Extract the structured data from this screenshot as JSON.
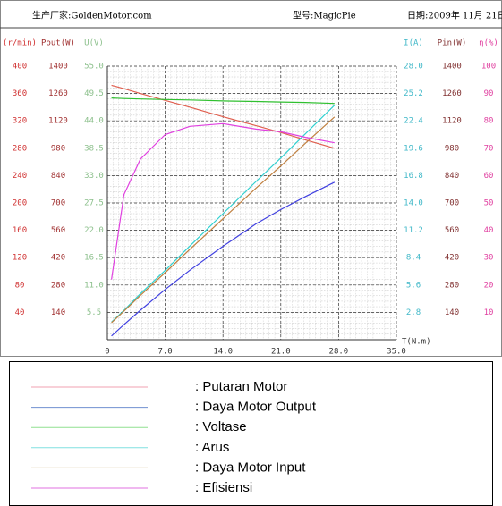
{
  "header": {
    "maker": "生产厂家:GoldenMotor.com",
    "model": "型号:MagicPie",
    "date": "日期:2009年 11月 21日"
  },
  "chart_data": {
    "type": "line",
    "x_label": "T(N.m)",
    "xlim": [
      0,
      35
    ],
    "xticks": [
      0,
      {
        "value": 7,
        "label": "7.0"
      },
      {
        "value": 14,
        "label": "14.0"
      },
      {
        "value": 21,
        "label": "21.0"
      },
      {
        "value": 28,
        "label": "28.0"
      },
      {
        "value": 35,
        "label": "35.0"
      }
    ],
    "grid": true,
    "axes": [
      {
        "id": "rpm",
        "label": "(r/min)",
        "color": "#d03030",
        "ylim": [
          0,
          400
        ],
        "yticks": [
          40,
          80,
          120,
          160,
          200,
          240,
          280,
          320,
          360,
          400
        ]
      },
      {
        "id": "pout",
        "label": "Pout(W)",
        "color": "#a03030",
        "ylim": [
          0,
          1400
        ],
        "yticks": [
          140,
          280,
          420,
          560,
          700,
          840,
          980,
          1120,
          1260,
          1400
        ]
      },
      {
        "id": "u",
        "label": "U(V)",
        "color": "#8cc08c",
        "ylim": [
          0,
          55
        ],
        "yticks": [
          5.5,
          {
            "value": 11,
            "label": "11.0"
          },
          16.5,
          {
            "value": 22,
            "label": "22.0"
          },
          27.5,
          {
            "value": 33,
            "label": "33.0"
          },
          38.5,
          {
            "value": 44,
            "label": "44.0"
          },
          49.5,
          {
            "value": 55,
            "label": "55.0"
          }
        ]
      },
      {
        "id": "i",
        "label": "I(A)",
        "color": "#40b8c8",
        "ylim": [
          0,
          28
        ],
        "yticks": [
          2.8,
          5.6,
          8.4,
          11.2,
          {
            "value": 14,
            "label": "14.0"
          },
          16.8,
          19.6,
          22.4,
          25.2,
          {
            "value": 28,
            "label": "28.0"
          }
        ]
      },
      {
        "id": "pin",
        "label": "Pin(W)",
        "color": "#803030",
        "ylim": [
          0,
          1400
        ],
        "yticks": [
          140,
          280,
          420,
          560,
          700,
          840,
          980,
          1120,
          1260,
          1400
        ]
      },
      {
        "id": "eta",
        "label": "η(%)",
        "color": "#e040a0",
        "ylim": [
          0,
          100
        ],
        "yticks": [
          10,
          20,
          30,
          40,
          50,
          60,
          70,
          80,
          90,
          100
        ]
      }
    ],
    "x": [
      0.5,
      2,
      4,
      7,
      10,
      14,
      18,
      21,
      24,
      27.5
    ],
    "series": [
      {
        "name": ": Putaran Motor",
        "axis": "rpm",
        "color": "#e06050",
        "legend_color": "#f0a0b0",
        "values": [
          372,
          367,
          360,
          350,
          340,
          326,
          313,
          303,
          292,
          280
        ]
      },
      {
        "name": ": Daya Motor Output",
        "axis": "pout",
        "color": "#4040e0",
        "legend_color": "#7090d0",
        "values": [
          19,
          77,
          151,
          257,
          356,
          478,
          593,
          666,
          733,
          806
        ]
      },
      {
        "name": ": Voltase",
        "axis": "u",
        "color": "#30c030",
        "legend_color": "#90e090",
        "values": [
          48.6,
          48.5,
          48.4,
          48.3,
          48.2,
          48.0,
          47.9,
          47.8,
          47.7,
          47.5
        ]
      },
      {
        "name": ": Arus",
        "axis": "i",
        "color": "#30d0d0",
        "legend_color": "#80e0e0",
        "values": [
          1.8,
          3.0,
          4.7,
          7.1,
          9.6,
          12.9,
          16.2,
          18.6,
          21.1,
          24.0
        ]
      },
      {
        "name": ": Daya Motor Input",
        "axis": "pin",
        "color": "#c08040",
        "legend_color": "#c0a060",
        "values": [
          87,
          146,
          227,
          343,
          463,
          619,
          776,
          889,
          1006,
          1140
        ]
      },
      {
        "name": ": Efisiensi",
        "axis": "eta",
        "color": "#e040e0",
        "legend_color": "#e070e0",
        "values": [
          22,
          53,
          66,
          75,
          78,
          79,
          77,
          76,
          74,
          72
        ]
      }
    ]
  }
}
